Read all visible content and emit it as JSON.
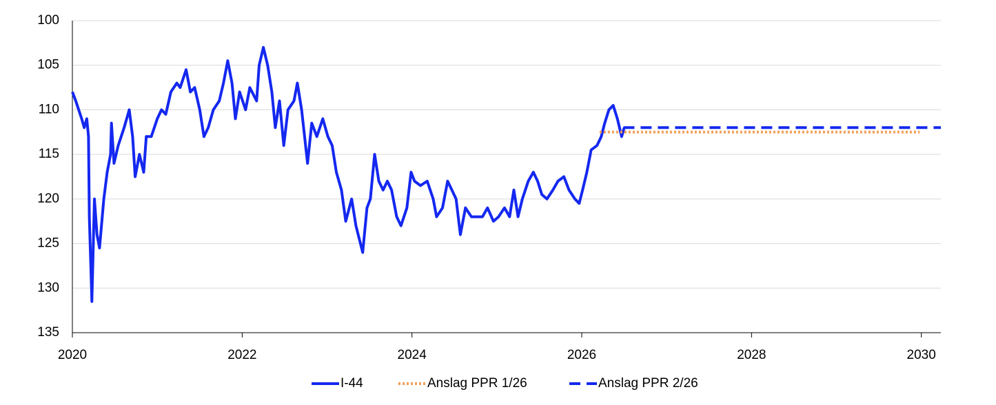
{
  "chart_data": {
    "type": "line",
    "xlim": [
      2020,
      2030.23
    ],
    "xticks": [
      2020,
      2022,
      2024,
      2026,
      2028,
      2030
    ],
    "ylim": [
      135,
      100
    ],
    "yticks": [
      100,
      105,
      110,
      115,
      120,
      125,
      130,
      135
    ],
    "grid": true,
    "legend": "bottom",
    "series": [
      {
        "name": "I-44",
        "color": "#1428f0",
        "style": "solid",
        "x": [
          2020.0,
          2020.04,
          2020.11,
          2020.14,
          2020.17,
          2020.19,
          2020.2,
          2020.23,
          2020.26,
          2020.29,
          2020.32,
          2020.37,
          2020.41,
          2020.45,
          2020.46,
          2020.49,
          2020.54,
          2020.61,
          2020.67,
          2020.71,
          2020.74,
          2020.79,
          2020.84,
          2020.87,
          2020.93,
          2021.0,
          2021.05,
          2021.1,
          2021.16,
          2021.23,
          2021.27,
          2021.34,
          2021.39,
          2021.44,
          2021.5,
          2021.55,
          2021.6,
          2021.66,
          2021.73,
          2021.78,
          2021.83,
          2021.88,
          2021.92,
          2021.97,
          2022.04,
          2022.09,
          2022.17,
          2022.2,
          2022.25,
          2022.3,
          2022.35,
          2022.39,
          2022.44,
          2022.49,
          2022.54,
          2022.61,
          2022.65,
          2022.7,
          2022.77,
          2022.82,
          2022.88,
          2022.95,
          2023.01,
          2023.06,
          2023.11,
          2023.17,
          2023.22,
          2023.29,
          2023.34,
          2023.38,
          2023.42,
          2023.47,
          2023.51,
          2023.56,
          2023.61,
          2023.66,
          2023.71,
          2023.76,
          2023.82,
          2023.87,
          2023.94,
          2023.99,
          2024.03,
          2024.1,
          2024.18,
          2024.25,
          2024.29,
          2024.36,
          2024.42,
          2024.47,
          2024.52,
          2024.57,
          2024.63,
          2024.7,
          2024.77,
          2024.83,
          2024.89,
          2024.96,
          2025.02,
          2025.09,
          2025.15,
          2025.2,
          2025.25,
          2025.3,
          2025.37,
          2025.43,
          2025.48,
          2025.53,
          2025.59,
          2025.66,
          2025.72,
          2025.79,
          2025.85,
          2025.92,
          2025.97,
          2026.01,
          2026.06,
          2026.11,
          2026.18,
          2026.23,
          2026.27,
          2026.32,
          2026.37,
          2026.42,
          2026.47,
          2026.5
        ],
        "values": [
          108,
          109,
          111,
          112,
          111,
          113,
          122,
          131.5,
          120,
          124,
          125.5,
          120,
          117,
          115,
          111.5,
          116,
          114,
          112,
          110,
          113,
          117.5,
          115,
          117,
          113,
          113,
          111,
          110,
          110.5,
          108,
          107,
          107.5,
          105.5,
          108,
          107.5,
          110,
          113,
          112,
          110,
          109,
          107,
          104.5,
          107,
          111,
          108,
          110,
          107.5,
          109,
          105,
          103,
          105,
          108,
          112,
          109,
          114,
          110,
          109,
          107,
          110,
          116,
          111.5,
          113,
          111,
          113,
          114,
          117,
          119,
          122.5,
          120,
          123,
          124.5,
          126,
          121,
          120,
          115,
          118,
          119,
          118,
          119,
          122,
          123,
          121,
          117,
          118,
          118.5,
          118,
          120,
          122,
          121,
          118,
          119,
          120,
          124,
          121,
          122,
          122,
          122,
          121,
          122.5,
          122,
          121,
          122,
          119,
          122,
          120,
          118,
          117,
          118,
          119.5,
          120,
          119,
          118,
          117.5,
          119,
          120,
          120.5,
          119,
          117,
          114.5,
          114,
          113,
          111.5,
          110,
          109.5,
          111,
          113,
          112
        ]
      },
      {
        "name": "Anslag PPR 1/26",
        "color": "#f0a05a",
        "style": "dotted",
        "x": [
          2026.21,
          2029.98
        ],
        "values": [
          112.5,
          112.5
        ]
      },
      {
        "name": "Anslag PPR 2/26",
        "color": "#1428f0",
        "style": "dashed",
        "x": [
          2026.49,
          2030.23
        ],
        "values": [
          112,
          112
        ]
      }
    ]
  }
}
